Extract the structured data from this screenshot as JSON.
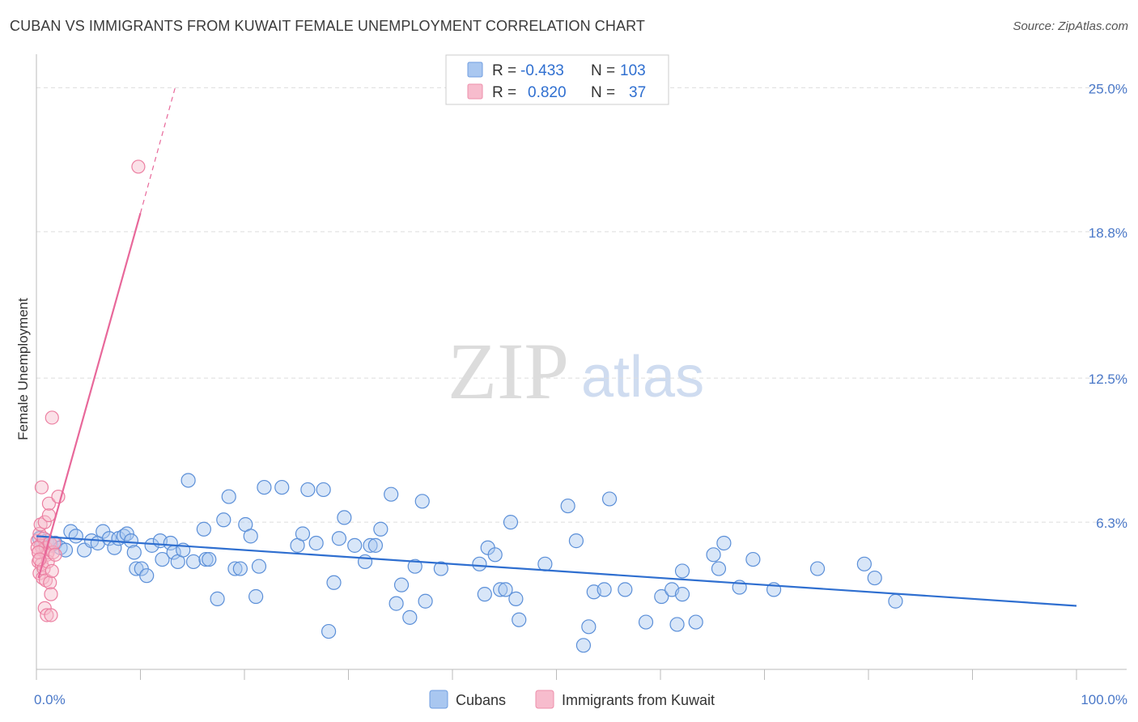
{
  "title": "CUBAN VS IMMIGRANTS FROM KUWAIT FEMALE UNEMPLOYMENT CORRELATION CHART",
  "source": "Source: ZipAtlas.com",
  "watermark": {
    "zip": "ZIP",
    "atlas": "atlas"
  },
  "legend": {
    "rows": [
      {
        "r_label": "R =",
        "r_value": "-0.433",
        "n_label": "N =",
        "n_value": "103",
        "color": "#a9c7f0",
        "stroke": "#6f9ee0"
      },
      {
        "r_label": "R =",
        "r_value": "0.820",
        "n_label": "N =",
        "n_value": "37",
        "color": "#f7bccd",
        "stroke": "#ee8fab"
      }
    ]
  },
  "bottom_legend": [
    {
      "label": "Cubans",
      "color": "#a9c7f0",
      "stroke": "#6f9ee0"
    },
    {
      "label": "Immigrants from Kuwait",
      "color": "#f7bccd",
      "stroke": "#ee8fab"
    }
  ],
  "colors": {
    "blue_point": "#a9c7f0",
    "blue_stroke": "#5b8fd8",
    "blue_line": "#2f6fd0",
    "pink_point": "#f7bccd",
    "pink_stroke": "#ec7fa1",
    "pink_line": "#e8689a",
    "grid": "#dddddd"
  },
  "chart_data": {
    "type": "scatter",
    "title": "CUBAN VS IMMIGRANTS FROM KUWAIT FEMALE UNEMPLOYMENT CORRELATION CHART",
    "xlabel": "",
    "ylabel": "Female Unemployment",
    "xlim": [
      0,
      100
    ],
    "ylim": [
      0,
      26.3
    ],
    "x_tick_labels": [
      "0.0%",
      "100.0%"
    ],
    "y_ticks": [
      6.3,
      12.5,
      18.8,
      25.0
    ],
    "y_tick_labels": [
      "6.3%",
      "12.5%",
      "18.8%",
      "25.0%"
    ],
    "series": [
      {
        "name": "Cubans",
        "r": -0.433,
        "n": 103,
        "trend": {
          "x": [
            0,
            100
          ],
          "y": [
            5.7,
            2.7
          ]
        },
        "points": [
          [
            0.3,
            5.6
          ],
          [
            0.6,
            5.4
          ],
          [
            1.0,
            5.5
          ],
          [
            1.4,
            5.3
          ],
          [
            1.8,
            5.4
          ],
          [
            2.3,
            5.2
          ],
          [
            2.8,
            5.1
          ],
          [
            3.3,
            5.9
          ],
          [
            3.8,
            5.7
          ],
          [
            4.6,
            5.1
          ],
          [
            5.3,
            5.5
          ],
          [
            5.9,
            5.4
          ],
          [
            6.4,
            5.9
          ],
          [
            7.0,
            5.6
          ],
          [
            7.5,
            5.2
          ],
          [
            7.9,
            5.6
          ],
          [
            8.4,
            5.7
          ],
          [
            8.7,
            5.8
          ],
          [
            9.1,
            5.5
          ],
          [
            9.4,
            5.0
          ],
          [
            9.6,
            4.3
          ],
          [
            10.1,
            4.3
          ],
          [
            10.6,
            4.0
          ],
          [
            11.1,
            5.3
          ],
          [
            11.9,
            5.5
          ],
          [
            12.1,
            4.7
          ],
          [
            12.9,
            5.4
          ],
          [
            13.2,
            5.0
          ],
          [
            13.6,
            4.6
          ],
          [
            14.1,
            5.1
          ],
          [
            14.6,
            8.1
          ],
          [
            15.1,
            4.6
          ],
          [
            16.1,
            6.0
          ],
          [
            16.3,
            4.7
          ],
          [
            16.6,
            4.7
          ],
          [
            17.4,
            3.0
          ],
          [
            18.0,
            6.4
          ],
          [
            18.5,
            7.4
          ],
          [
            19.1,
            4.3
          ],
          [
            19.6,
            4.3
          ],
          [
            20.1,
            6.2
          ],
          [
            20.6,
            5.7
          ],
          [
            21.1,
            3.1
          ],
          [
            21.4,
            4.4
          ],
          [
            21.9,
            7.8
          ],
          [
            23.6,
            7.8
          ],
          [
            25.1,
            5.3
          ],
          [
            25.6,
            5.8
          ],
          [
            26.1,
            7.7
          ],
          [
            26.9,
            5.4
          ],
          [
            27.6,
            7.7
          ],
          [
            28.1,
            1.6
          ],
          [
            28.6,
            3.7
          ],
          [
            29.1,
            5.6
          ],
          [
            29.6,
            6.5
          ],
          [
            30.6,
            5.3
          ],
          [
            31.6,
            4.6
          ],
          [
            32.1,
            5.3
          ],
          [
            32.6,
            5.3
          ],
          [
            33.1,
            6.0
          ],
          [
            34.1,
            7.5
          ],
          [
            34.6,
            2.8
          ],
          [
            35.1,
            3.6
          ],
          [
            35.9,
            2.2
          ],
          [
            36.4,
            4.4
          ],
          [
            37.1,
            7.2
          ],
          [
            37.4,
            2.9
          ],
          [
            38.9,
            4.3
          ],
          [
            42.6,
            4.5
          ],
          [
            43.1,
            3.2
          ],
          [
            43.4,
            5.2
          ],
          [
            44.1,
            4.9
          ],
          [
            44.6,
            3.4
          ],
          [
            45.1,
            3.4
          ],
          [
            45.6,
            6.3
          ],
          [
            46.1,
            3.0
          ],
          [
            46.4,
            2.1
          ],
          [
            48.9,
            4.5
          ],
          [
            51.1,
            7.0
          ],
          [
            51.9,
            5.5
          ],
          [
            52.6,
            1.0
          ],
          [
            53.1,
            1.8
          ],
          [
            53.6,
            3.3
          ],
          [
            54.6,
            3.4
          ],
          [
            55.1,
            7.3
          ],
          [
            56.6,
            3.4
          ],
          [
            58.6,
            2.0
          ],
          [
            60.1,
            3.1
          ],
          [
            61.1,
            3.4
          ],
          [
            61.6,
            1.9
          ],
          [
            62.1,
            3.2
          ],
          [
            62.1,
            4.2
          ],
          [
            63.4,
            2.0
          ],
          [
            65.1,
            4.9
          ],
          [
            65.6,
            4.3
          ],
          [
            66.1,
            5.4
          ],
          [
            67.6,
            3.5
          ],
          [
            68.9,
            4.7
          ],
          [
            70.9,
            3.4
          ],
          [
            75.1,
            4.3
          ],
          [
            79.6,
            4.5
          ],
          [
            80.6,
            3.9
          ],
          [
            82.6,
            2.9
          ]
        ]
      },
      {
        "name": "Immigrants from Kuwait",
        "r": 0.82,
        "n": 37,
        "trend": {
          "x": [
            0.2,
            10.0
          ],
          "y": [
            3.9,
            19.6
          ]
        },
        "trend_dashed": {
          "x": [
            10.0,
            13.4
          ],
          "y": [
            19.6,
            25.1
          ]
        },
        "points": [
          [
            0.1,
            5.5
          ],
          [
            0.2,
            4.6
          ],
          [
            0.2,
            5.0
          ],
          [
            0.3,
            5.8
          ],
          [
            0.3,
            4.1
          ],
          [
            0.4,
            5.3
          ],
          [
            0.4,
            6.2
          ],
          [
            0.5,
            7.8
          ],
          [
            0.5,
            4.5
          ],
          [
            0.6,
            5.1
          ],
          [
            0.6,
            3.9
          ],
          [
            0.7,
            5.6
          ],
          [
            0.7,
            4.3
          ],
          [
            0.8,
            6.3
          ],
          [
            0.8,
            2.6
          ],
          [
            0.9,
            5.2
          ],
          [
            0.9,
            3.8
          ],
          [
            1.0,
            4.9
          ],
          [
            1.0,
            2.3
          ],
          [
            1.1,
            5.0
          ],
          [
            1.1,
            4.6
          ],
          [
            1.2,
            6.6
          ],
          [
            1.2,
            7.1
          ],
          [
            1.3,
            3.7
          ],
          [
            1.3,
            5.4
          ],
          [
            1.4,
            2.3
          ],
          [
            1.4,
            3.2
          ],
          [
            1.5,
            10.8
          ],
          [
            1.5,
            4.2
          ],
          [
            1.6,
            5.0
          ],
          [
            1.7,
            5.4
          ],
          [
            1.8,
            4.9
          ],
          [
            2.1,
            7.4
          ],
          [
            9.8,
            21.6
          ],
          [
            0.1,
            5.2
          ],
          [
            0.2,
            5.0
          ],
          [
            0.3,
            4.7
          ]
        ]
      }
    ]
  }
}
